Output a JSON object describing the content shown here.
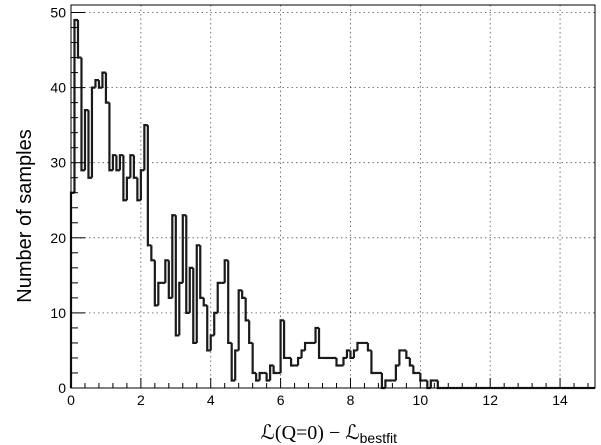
{
  "chart_data": {
    "type": "histogram",
    "ylabel": "Number of samples",
    "xlabel": {
      "main": "ℒ(Q=0) − ℒ",
      "subscript": "bestfit"
    },
    "xlim": [
      0,
      15
    ],
    "ylim": [
      0,
      51
    ],
    "grid": true,
    "x_ticks": [
      0,
      2,
      4,
      6,
      8,
      10,
      12,
      14
    ],
    "y_ticks": [
      0,
      10,
      20,
      30,
      40,
      50
    ],
    "bin_width": 0.1,
    "bin_values": [
      26,
      49,
      44,
      29,
      37,
      28,
      40,
      41,
      40,
      42,
      38,
      29,
      31,
      29,
      31,
      25,
      28,
      31,
      28,
      25,
      29,
      35,
      19,
      17,
      11,
      14,
      14,
      17,
      12,
      23,
      7,
      14,
      23,
      10,
      16,
      6,
      19,
      12,
      11,
      5,
      7,
      10,
      14,
      14,
      17,
      6,
      1,
      5,
      13,
      12,
      9,
      6,
      2,
      1,
      2,
      2,
      1,
      3,
      2,
      2,
      9,
      4,
      4,
      3,
      3,
      4,
      5,
      6,
      6,
      6,
      8,
      4,
      4,
      4,
      4,
      4,
      3,
      3,
      4,
      5,
      4,
      5,
      6,
      6,
      6,
      5,
      2,
      2,
      2,
      0,
      1,
      1,
      1,
      3,
      5,
      5,
      4,
      3,
      2,
      2,
      1,
      1,
      0,
      1,
      1,
      0,
      0,
      0,
      0,
      0,
      0,
      0,
      0,
      0,
      0,
      0,
      0,
      0,
      0,
      0,
      0,
      0,
      0,
      0,
      0,
      0,
      0,
      0,
      0,
      0,
      0,
      0,
      0,
      0,
      0,
      0,
      0,
      0,
      0,
      0,
      0,
      0,
      0,
      0,
      0,
      0,
      0,
      0,
      0,
      0
    ]
  }
}
